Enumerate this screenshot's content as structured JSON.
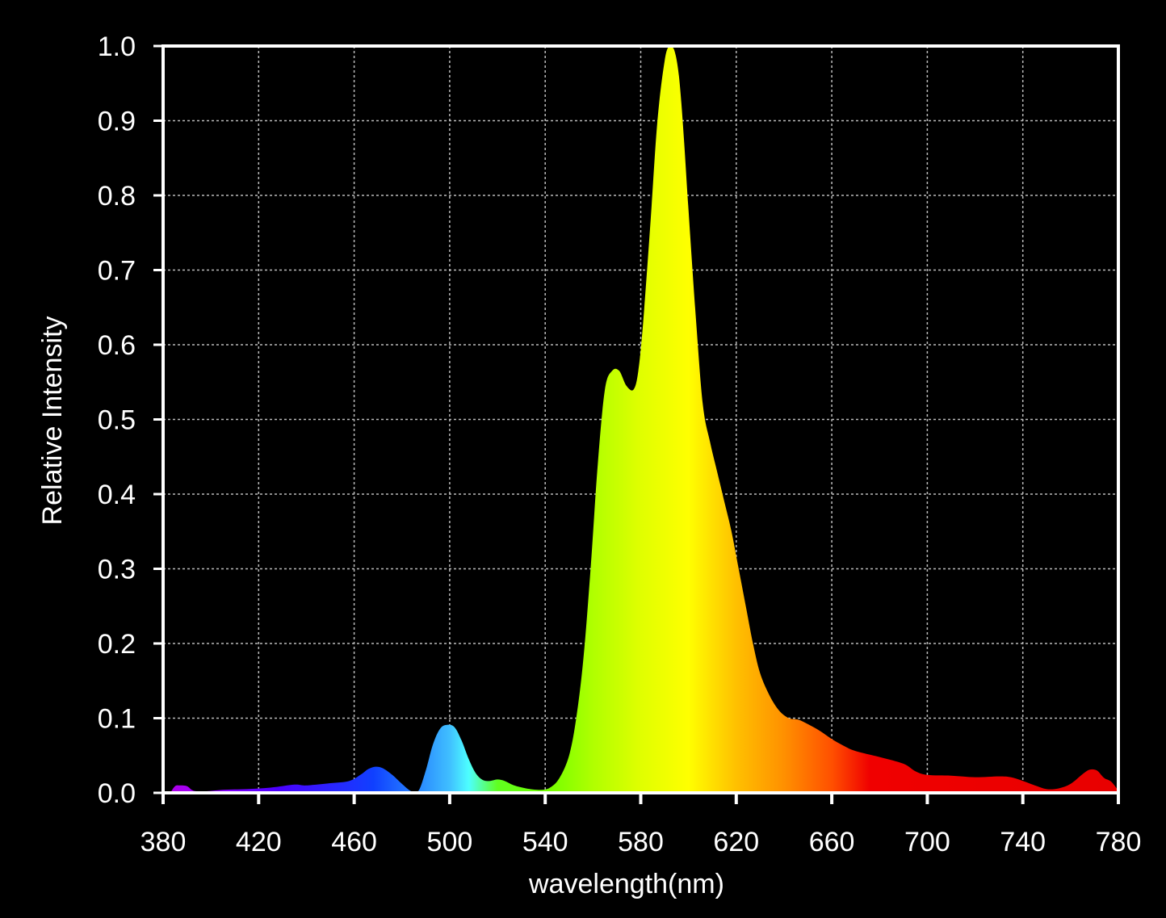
{
  "chart_data": {
    "type": "area",
    "title": "",
    "xlabel": "wavelength(nm)",
    "ylabel": "Relative Intensity",
    "xlim": [
      380,
      780
    ],
    "ylim": [
      0,
      1
    ],
    "grid": true,
    "x_ticks": [
      "380",
      "420",
      "460",
      "500",
      "540",
      "580",
      "620",
      "660",
      "700",
      "740",
      "780"
    ],
    "y_ticks": [
      "0.0",
      "0.1",
      "0.2",
      "0.3",
      "0.4",
      "0.5",
      "0.6",
      "0.7",
      "0.8",
      "0.9",
      "1.0"
    ],
    "background_color": "#000000",
    "axis_color": "#ffffff",
    "grid_color": "#bbbbbb",
    "series": [
      {
        "x": [
          383,
          385,
          387,
          390,
          392,
          394,
          398,
          405,
          415,
          425,
          435,
          440,
          450,
          458,
          463,
          466,
          469,
          472,
          476,
          480,
          484,
          487,
          490,
          493,
          496,
          499,
          502,
          505,
          508,
          511,
          514,
          517,
          520,
          523,
          527,
          532,
          538,
          542,
          546,
          550,
          553,
          556,
          559,
          562,
          565,
          568,
          571,
          574,
          577,
          579,
          581,
          584,
          587,
          590,
          592,
          594,
          596,
          598,
          600,
          603,
          606,
          609,
          612,
          615,
          618,
          621,
          624,
          627,
          630,
          634,
          638,
          642,
          646,
          650,
          655,
          660,
          665,
          670,
          680,
          690,
          695,
          700,
          710,
          720,
          730,
          735,
          740,
          745,
          750,
          755,
          760,
          765,
          768,
          771,
          774,
          777,
          780
        ],
        "y": [
          0.0,
          0.009,
          0.01,
          0.009,
          0.004,
          0.002,
          0.002,
          0.004,
          0.005,
          0.007,
          0.011,
          0.01,
          0.013,
          0.016,
          0.025,
          0.032,
          0.035,
          0.033,
          0.024,
          0.012,
          0.002,
          0.003,
          0.03,
          0.065,
          0.086,
          0.091,
          0.088,
          0.07,
          0.045,
          0.026,
          0.017,
          0.016,
          0.018,
          0.016,
          0.01,
          0.006,
          0.004,
          0.007,
          0.02,
          0.05,
          0.1,
          0.18,
          0.3,
          0.44,
          0.54,
          0.565,
          0.565,
          0.545,
          0.54,
          0.565,
          0.63,
          0.76,
          0.9,
          0.98,
          1.0,
          0.995,
          0.96,
          0.88,
          0.78,
          0.64,
          0.52,
          0.47,
          0.43,
          0.39,
          0.35,
          0.3,
          0.25,
          0.2,
          0.16,
          0.13,
          0.11,
          0.1,
          0.098,
          0.092,
          0.083,
          0.072,
          0.063,
          0.056,
          0.048,
          0.039,
          0.029,
          0.024,
          0.023,
          0.021,
          0.022,
          0.021,
          0.016,
          0.01,
          0.005,
          0.006,
          0.012,
          0.025,
          0.031,
          0.03,
          0.02,
          0.015,
          0.003
        ]
      }
    ]
  }
}
